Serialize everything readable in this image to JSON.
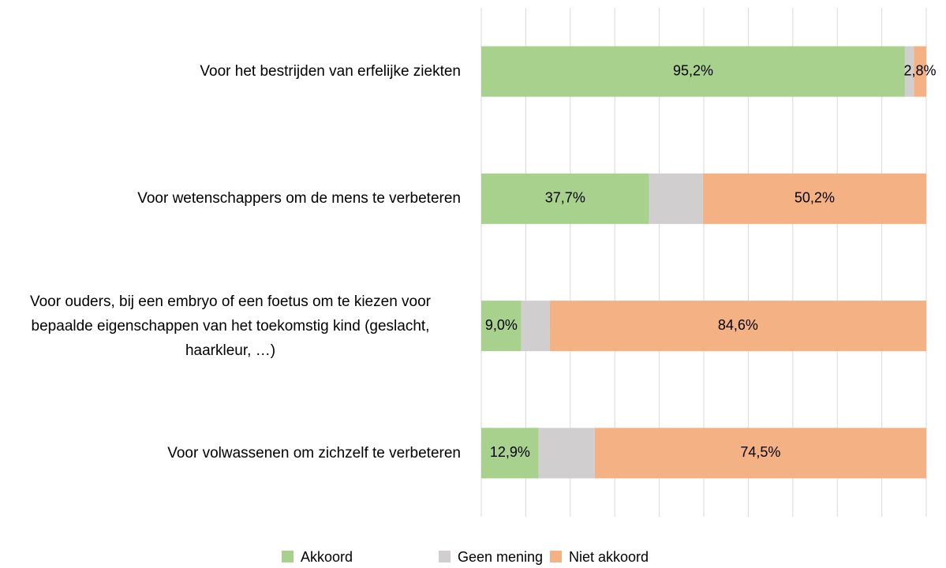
{
  "chart_data": {
    "type": "stacked-bar-horizontal",
    "categories": [
      "Voor het bestrijden van erfelijke ziekten",
      "Voor wetenschappers om de mens te verbeteren",
      "Voor ouders, bij een embryo of een foetus om te kiezen voor bepaalde eigenschappen van het toekomstig kind (geslacht, haarkleur, …)",
      "Voor volwassenen om zichzelf te verbeteren"
    ],
    "series": [
      {
        "name": "Akkoord",
        "color": "#a9d18e",
        "values": [
          95.2,
          37.7,
          9.0,
          12.9
        ],
        "value_labels": [
          "95,2%",
          "37,7%",
          "9,0%",
          "12,9%"
        ]
      },
      {
        "name": "Geen mening",
        "color": "#d0cece",
        "values": [
          2.0,
          12.1,
          6.4,
          12.6
        ]
      },
      {
        "name": "Niet akkoord",
        "color": "#f4b183",
        "values": [
          2.8,
          50.2,
          84.6,
          74.5
        ],
        "value_labels": [
          "2,8%",
          "50,2%",
          "84,6%",
          "74,5%"
        ]
      }
    ],
    "xlim": [
      0,
      100
    ],
    "xticks": [
      0,
      10,
      20,
      30,
      40,
      50,
      60,
      70,
      80,
      90,
      100
    ],
    "grid": true,
    "legend": "bottom"
  }
}
